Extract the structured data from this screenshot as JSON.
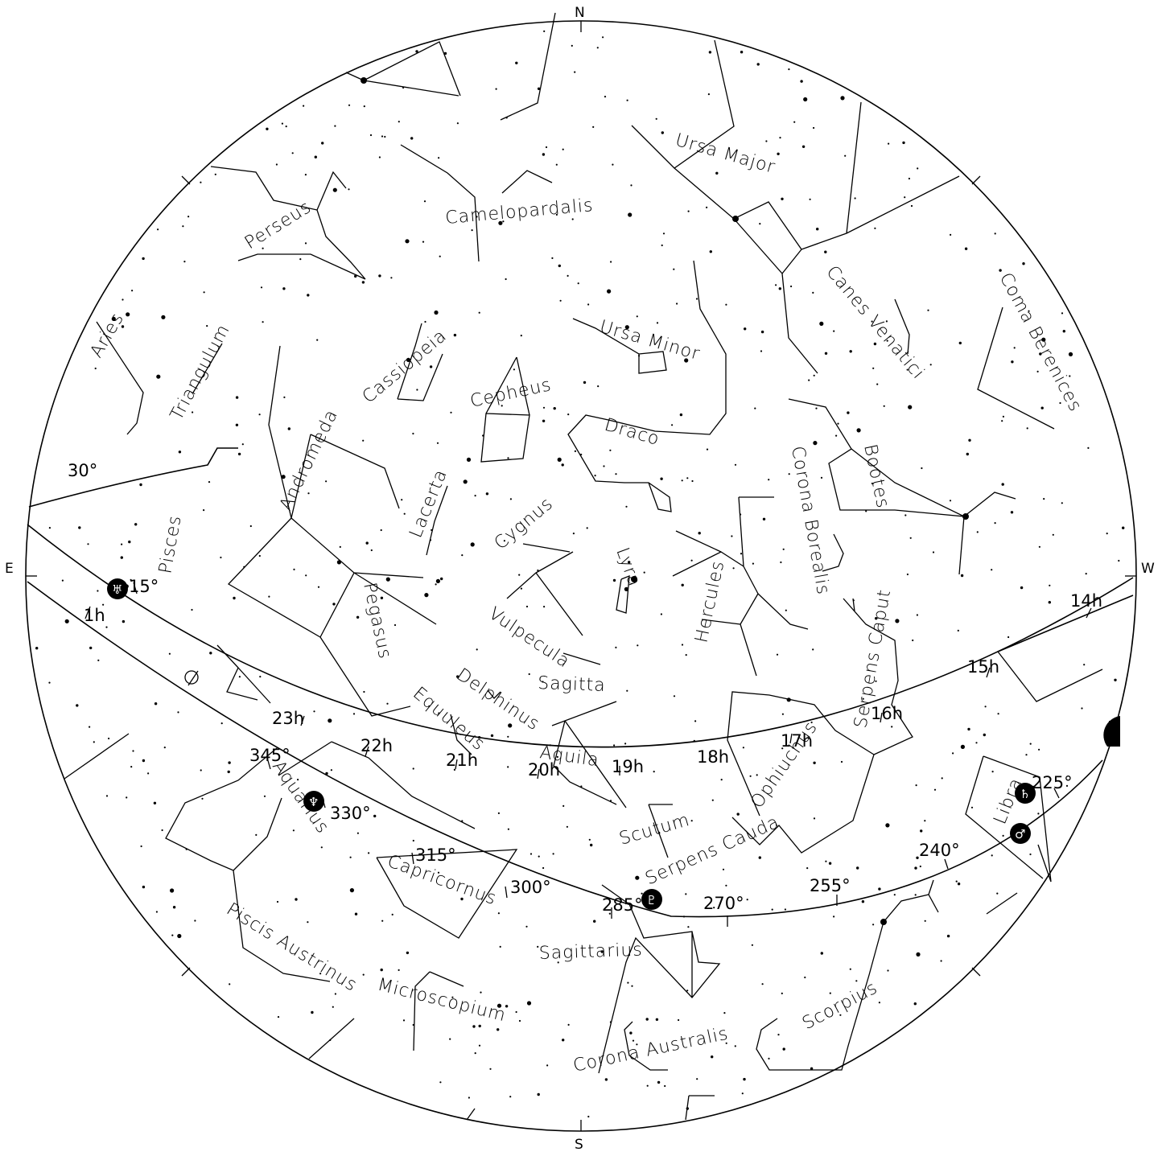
{
  "cardinals": {
    "north": "N",
    "south": "S",
    "east": "E",
    "west": "W"
  },
  "constellations": [
    "Ursa Major",
    "Camelopardalis",
    "Perseus",
    "Canes Venatici",
    "Coma Berenices",
    "Aries",
    "Triangulum",
    "Cassiopeia",
    "Ursa Minor",
    "Cepheus",
    "Andromeda",
    "Draco",
    "Lacerta",
    "Corona Borealis",
    "Bootes",
    "Pisces",
    "Cygnus",
    "Lyra",
    "Hercules",
    "Pegasus",
    "Vulpecula",
    "Serpens Caput",
    "Sagitta",
    "Delphinus",
    "Equuleus",
    "Aquila",
    "Ophiuchus",
    "Aquarius",
    "Scutum",
    "Serpens Cauda",
    "Libra",
    "Capricornus",
    "Sagittarius",
    "Piscis Austrinus",
    "Microscopium",
    "Corona Australis",
    "Scorpius"
  ],
  "equator_hours": [
    "1h",
    "23h",
    "22h",
    "21h",
    "20h",
    "19h",
    "18h",
    "17h",
    "16h",
    "15h",
    "14h"
  ],
  "ecliptic_degrees": [
    "30°",
    "15°",
    "345°",
    "330°",
    "315°",
    "300°",
    "285°",
    "270°",
    "255°",
    "240°",
    "225°"
  ],
  "planets": [
    {
      "name": "Uranus",
      "symbol": "♅"
    },
    {
      "name": "Neptune",
      "symbol": "♆"
    },
    {
      "name": "Pluto",
      "symbol": "♇"
    },
    {
      "name": "Saturn",
      "symbol": "♄"
    },
    {
      "name": "Mars",
      "symbol": "♂"
    },
    {
      "name": "Moon",
      "symbol": "☽"
    }
  ]
}
